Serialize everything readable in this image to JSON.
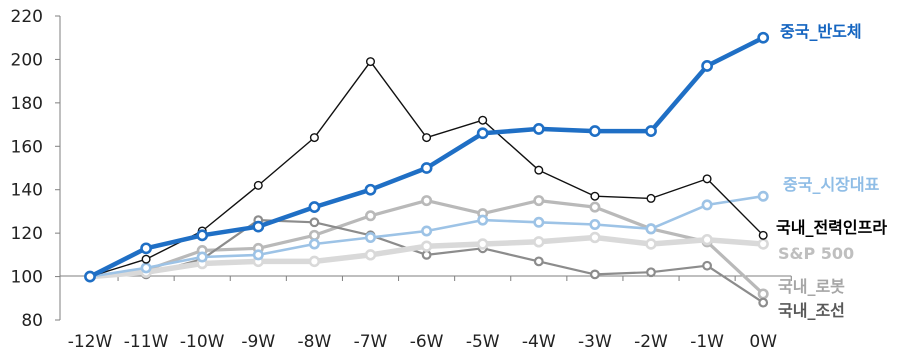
{
  "chart_data": {
    "type": "line",
    "categories": [
      "-12W",
      "-11W",
      "-10W",
      "-9W",
      "-8W",
      "-7W",
      "-6W",
      "-5W",
      "-4W",
      "-3W",
      "-2W",
      "-1W",
      "0W"
    ],
    "ylim": [
      80,
      220
    ],
    "yticks": [
      80,
      100,
      120,
      140,
      160,
      180,
      200,
      220
    ],
    "grid": false,
    "series": [
      {
        "name": "국내_로봇",
        "color": "#b9b9b9",
        "values": [
          100,
          103,
          112,
          113,
          119,
          128,
          135,
          129,
          135,
          132,
          122,
          116,
          92
        ]
      },
      {
        "name": "국내_조선",
        "color": "#8c8c8c",
        "values": [
          100,
          101,
          108,
          126,
          125,
          119,
          110,
          113,
          107,
          101,
          102,
          105,
          88
        ]
      },
      {
        "name": "S&P 500",
        "color": "#d9d9d9",
        "values": [
          100,
          102,
          106,
          107,
          107,
          110,
          114,
          115,
          116,
          118,
          115,
          117,
          115
        ]
      },
      {
        "name": "중국_시장대표",
        "color": "#9dc3e6",
        "values": [
          100,
          104,
          109,
          110,
          115,
          118,
          121,
          126,
          125,
          124,
          122,
          133,
          137
        ]
      },
      {
        "name": "국내_전력인프라",
        "color": "#111111",
        "values": [
          100,
          108,
          121,
          142,
          164,
          199,
          164,
          172,
          149,
          137,
          136,
          145,
          119
        ]
      },
      {
        "name": "중국_반도체",
        "color": "#1f6fc5",
        "values": [
          100,
          113,
          119,
          123,
          132,
          140,
          150,
          166,
          168,
          167,
          167,
          197,
          210
        ]
      }
    ]
  }
}
